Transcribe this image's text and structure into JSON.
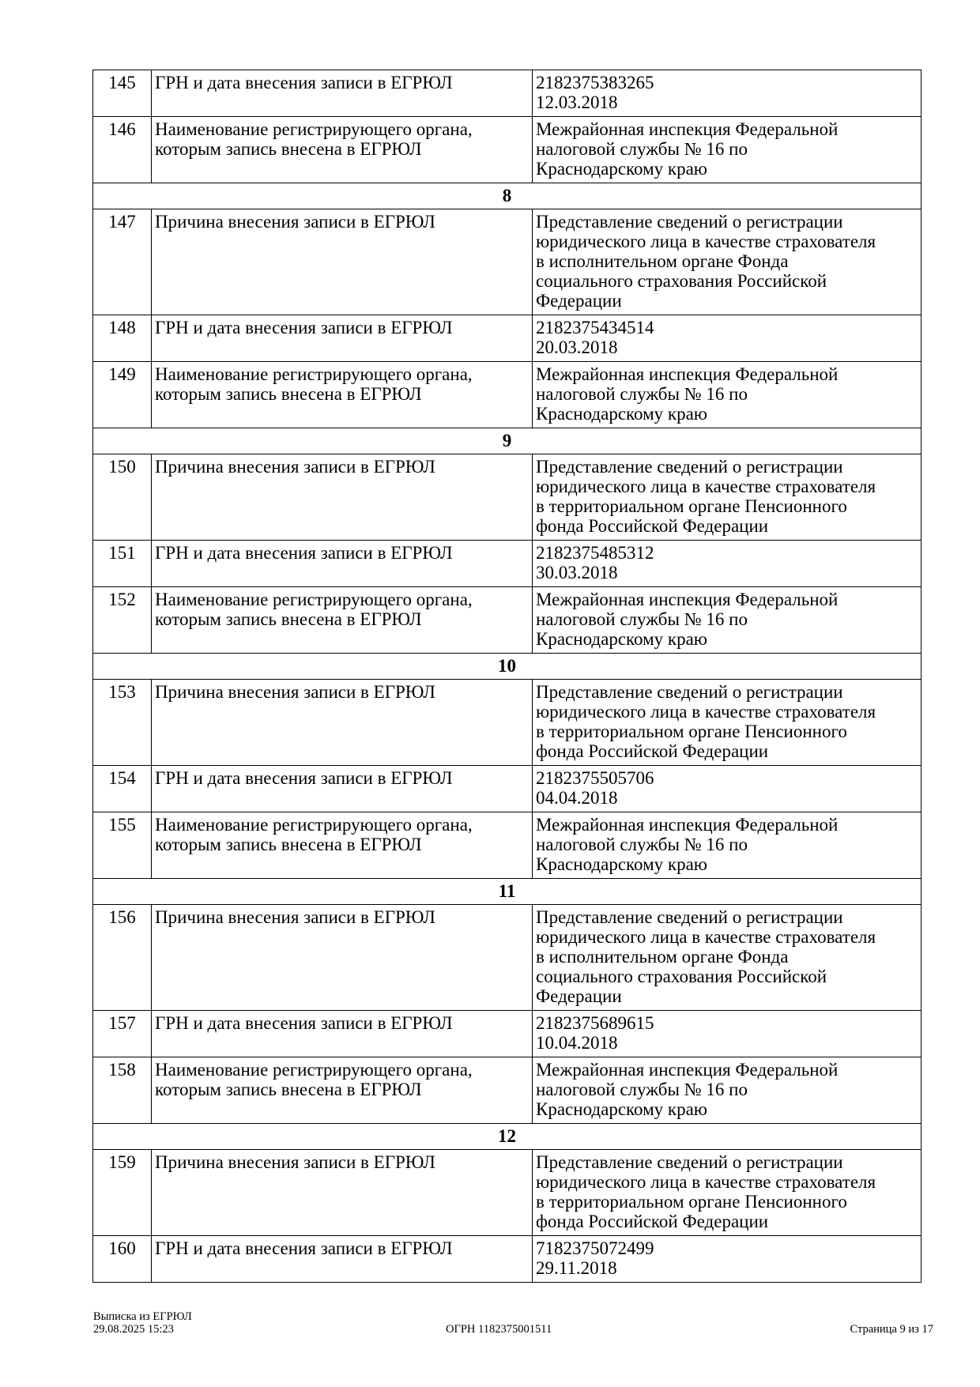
{
  "rows": [
    {
      "type": "row",
      "num": "145",
      "label": "ГРН и дата внесения записи в ЕГРЮЛ",
      "value": "2182375383265\n12.03.2018"
    },
    {
      "type": "row",
      "num": "146",
      "label": "Наименование регистрирующего органа,\nкоторым запись внесена в ЕГРЮЛ",
      "value": "Межрайонная инспекция Федеральной\nналоговой службы № 16 по\nКраснодарскому краю"
    },
    {
      "type": "section",
      "title": "8"
    },
    {
      "type": "row",
      "num": "147",
      "label": "Причина внесения записи в ЕГРЮЛ",
      "value": "Представление сведений о регистрации\nюридического лица в качестве страхователя\nв исполнительном органе Фонда\nсоциального страхования Российской\nФедерации"
    },
    {
      "type": "row",
      "num": "148",
      "label": "ГРН и дата внесения записи в ЕГРЮЛ",
      "value": "2182375434514\n20.03.2018"
    },
    {
      "type": "row",
      "num": "149",
      "label": "Наименование регистрирующего органа,\nкоторым запись внесена в ЕГРЮЛ",
      "value": "Межрайонная инспекция Федеральной\nналоговой службы № 16 по\nКраснодарскому краю"
    },
    {
      "type": "section",
      "title": "9"
    },
    {
      "type": "row",
      "num": "150",
      "label": "Причина внесения записи в ЕГРЮЛ",
      "value": "Представление сведений о регистрации\nюридического лица в качестве страхователя\nв территориальном органе Пенсионного\nфонда Российской Федерации"
    },
    {
      "type": "row",
      "num": "151",
      "label": "ГРН и дата внесения записи в ЕГРЮЛ",
      "value": "2182375485312\n30.03.2018"
    },
    {
      "type": "row",
      "num": "152",
      "label": "Наименование регистрирующего органа,\nкоторым запись внесена в ЕГРЮЛ",
      "value": "Межрайонная инспекция Федеральной\nналоговой службы № 16 по\nКраснодарскому краю"
    },
    {
      "type": "section",
      "title": "10"
    },
    {
      "type": "row",
      "num": "153",
      "label": "Причина внесения записи в ЕГРЮЛ",
      "value": "Представление сведений о регистрации\nюридического лица в качестве страхователя\nв территориальном органе Пенсионного\nфонда Российской Федерации"
    },
    {
      "type": "row",
      "num": "154",
      "label": "ГРН и дата внесения записи в ЕГРЮЛ",
      "value": "2182375505706\n04.04.2018"
    },
    {
      "type": "row",
      "num": "155",
      "label": "Наименование регистрирующего органа,\nкоторым запись внесена в ЕГРЮЛ",
      "value": "Межрайонная инспекция Федеральной\nналоговой службы № 16 по\nКраснодарскому краю"
    },
    {
      "type": "section",
      "title": "11"
    },
    {
      "type": "row",
      "num": "156",
      "label": "Причина внесения записи в ЕГРЮЛ",
      "value": "Представление сведений о регистрации\nюридического лица в качестве страхователя\nв исполнительном органе Фонда\nсоциального страхования Российской\nФедерации"
    },
    {
      "type": "row",
      "num": "157",
      "label": "ГРН и дата внесения записи в ЕГРЮЛ",
      "value": "2182375689615\n10.04.2018"
    },
    {
      "type": "row",
      "num": "158",
      "label": "Наименование регистрирующего органа,\nкоторым запись внесена в ЕГРЮЛ",
      "value": "Межрайонная инспекция Федеральной\nналоговой службы № 16 по\nКраснодарскому краю"
    },
    {
      "type": "section",
      "title": "12"
    },
    {
      "type": "row",
      "num": "159",
      "label": "Причина внесения записи в ЕГРЮЛ",
      "value": "Представление сведений о регистрации\nюридического лица в качестве страхователя\nв территориальном органе Пенсионного\nфонда Российской Федерации"
    },
    {
      "type": "row",
      "num": "160",
      "label": "ГРН и дата внесения записи в ЕГРЮЛ",
      "value": "7182375072499\n29.11.2018"
    }
  ],
  "footer": {
    "doc_title": "Выписка из ЕГРЮЛ",
    "datetime": "29.08.2025 15:23",
    "ogrn": "ОГРН 1182375001511",
    "page": "Страница 9 из 17"
  }
}
